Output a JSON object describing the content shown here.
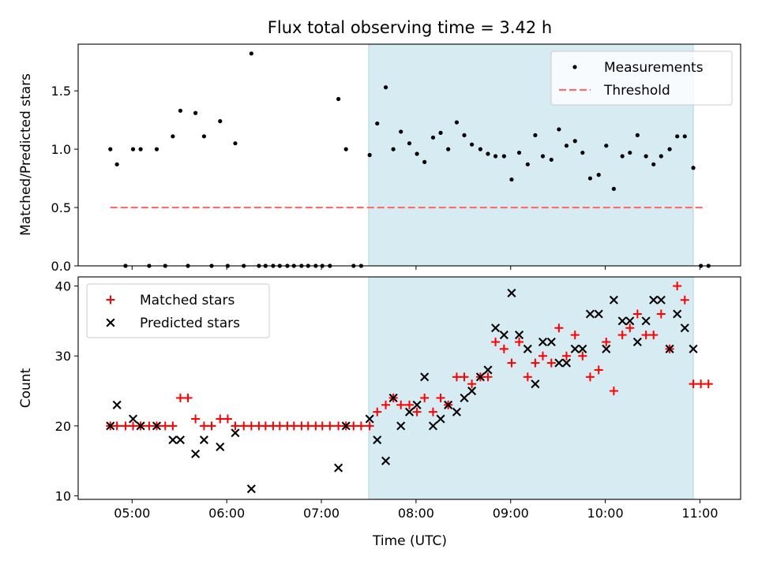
{
  "chart_data": {
    "title": "Flux total observing time = 3.42 h",
    "xlabel": "Time (UTC)",
    "xticks": [
      "05:00",
      "06:00",
      "07:00",
      "08:00",
      "09:00",
      "10:00",
      "11:00"
    ],
    "xlim_hours": [
      4.43,
      11.43
    ],
    "shaded_span_hours": [
      7.5,
      10.93
    ],
    "shade_color": "#add8e6",
    "panels": [
      {
        "type": "scatter",
        "ylabel": "Matched/Predicted stars",
        "ylim": [
          0,
          1.9
        ],
        "yticks": [
          0.0,
          0.5,
          1.0,
          1.5
        ],
        "legend_position": "top-right",
        "series": [
          {
            "name": "Measurements",
            "marker": "dot",
            "color": "#000000",
            "points": [
              [
                4.77,
                1.0
              ],
              [
                4.84,
                0.87
              ],
              [
                4.93,
                0.0
              ],
              [
                5.01,
                1.0
              ],
              [
                5.09,
                1.0
              ],
              [
                5.18,
                0.0
              ],
              [
                5.26,
                1.0
              ],
              [
                5.35,
                0.0
              ],
              [
                5.43,
                1.11
              ],
              [
                5.51,
                1.33
              ],
              [
                5.59,
                0.0
              ],
              [
                5.67,
                1.31
              ],
              [
                5.76,
                1.11
              ],
              [
                5.84,
                0.0
              ],
              [
                5.93,
                1.24
              ],
              [
                6.01,
                0.0
              ],
              [
                6.09,
                1.05
              ],
              [
                6.18,
                0.0
              ],
              [
                6.26,
                1.82
              ],
              [
                6.34,
                0.0
              ],
              [
                6.41,
                0.0
              ],
              [
                6.49,
                0.0
              ],
              [
                6.56,
                0.0
              ],
              [
                6.64,
                0.0
              ],
              [
                6.71,
                0.0
              ],
              [
                6.79,
                0.0
              ],
              [
                6.86,
                0.0
              ],
              [
                6.94,
                0.0
              ],
              [
                7.01,
                0.0
              ],
              [
                7.09,
                0.0
              ],
              [
                7.18,
                1.43
              ],
              [
                7.26,
                1.0
              ],
              [
                7.34,
                0.0
              ],
              [
                7.42,
                0.0
              ],
              [
                7.51,
                0.95
              ],
              [
                7.59,
                1.22
              ],
              [
                7.68,
                1.53
              ],
              [
                7.76,
                1.0
              ],
              [
                7.84,
                1.15
              ],
              [
                7.93,
                1.05
              ],
              [
                8.01,
                0.96
              ],
              [
                8.09,
                0.89
              ],
              [
                8.18,
                1.1
              ],
              [
                8.26,
                1.14
              ],
              [
                8.34,
                1.0
              ],
              [
                8.43,
                1.23
              ],
              [
                8.51,
                1.12
              ],
              [
                8.59,
                1.04
              ],
              [
                8.68,
                1.0
              ],
              [
                8.76,
                0.96
              ],
              [
                8.84,
                0.94
              ],
              [
                8.93,
                0.94
              ],
              [
                9.01,
                0.74
              ],
              [
                9.09,
                0.97
              ],
              [
                9.18,
                0.87
              ],
              [
                9.26,
                1.12
              ],
              [
                9.34,
                0.94
              ],
              [
                9.43,
                0.91
              ],
              [
                9.51,
                1.17
              ],
              [
                9.59,
                1.03
              ],
              [
                9.68,
                1.07
              ],
              [
                9.76,
                0.97
              ],
              [
                9.84,
                0.75
              ],
              [
                9.93,
                0.78
              ],
              [
                10.01,
                1.03
              ],
              [
                10.09,
                0.66
              ],
              [
                10.18,
                0.94
              ],
              [
                10.26,
                0.97
              ],
              [
                10.34,
                1.12
              ],
              [
                10.43,
                0.94
              ],
              [
                10.51,
                0.87
              ],
              [
                10.59,
                0.94
              ],
              [
                10.68,
                1.0
              ],
              [
                10.76,
                1.11
              ],
              [
                10.84,
                1.11
              ],
              [
                10.93,
                0.84
              ],
              [
                11.01,
                0.0
              ],
              [
                11.09,
                0.0
              ]
            ]
          },
          {
            "name": "Threshold",
            "style": "dashed-line",
            "color": "#ff6b6b",
            "points": [
              [
                4.77,
                0.5
              ],
              [
                11.05,
                0.5
              ]
            ]
          }
        ]
      },
      {
        "type": "scatter",
        "ylabel": "Count",
        "ylim": [
          9.5,
          41.3
        ],
        "yticks": [
          10,
          20,
          30,
          40
        ],
        "legend_position": "top-left",
        "series": [
          {
            "name": "Matched stars",
            "marker": "plus",
            "color": "#ff0000",
            "points": [
              [
                4.77,
                20
              ],
              [
                4.84,
                20
              ],
              [
                4.93,
                20
              ],
              [
                5.01,
                20
              ],
              [
                5.09,
                20
              ],
              [
                5.18,
                20
              ],
              [
                5.26,
                20
              ],
              [
                5.35,
                20
              ],
              [
                5.43,
                20
              ],
              [
                5.51,
                24
              ],
              [
                5.59,
                24
              ],
              [
                5.67,
                21
              ],
              [
                5.76,
                20
              ],
              [
                5.84,
                20
              ],
              [
                5.93,
                21
              ],
              [
                6.01,
                21
              ],
              [
                6.09,
                20
              ],
              [
                6.18,
                20
              ],
              [
                6.26,
                20
              ],
              [
                6.34,
                20
              ],
              [
                6.41,
                20
              ],
              [
                6.49,
                20
              ],
              [
                6.56,
                20
              ],
              [
                6.64,
                20
              ],
              [
                6.71,
                20
              ],
              [
                6.79,
                20
              ],
              [
                6.86,
                20
              ],
              [
                6.94,
                20
              ],
              [
                7.01,
                20
              ],
              [
                7.09,
                20
              ],
              [
                7.18,
                20
              ],
              [
                7.26,
                20
              ],
              [
                7.34,
                20
              ],
              [
                7.42,
                20
              ],
              [
                7.51,
                20
              ],
              [
                7.59,
                22
              ],
              [
                7.68,
                23
              ],
              [
                7.76,
                24
              ],
              [
                7.84,
                23
              ],
              [
                7.93,
                23
              ],
              [
                8.01,
                22
              ],
              [
                8.09,
                24
              ],
              [
                8.18,
                22
              ],
              [
                8.26,
                24
              ],
              [
                8.34,
                23
              ],
              [
                8.43,
                27
              ],
              [
                8.51,
                27
              ],
              [
                8.59,
                26
              ],
              [
                8.68,
                27
              ],
              [
                8.76,
                27
              ],
              [
                8.84,
                32
              ],
              [
                8.93,
                31
              ],
              [
                9.01,
                29
              ],
              [
                9.09,
                32
              ],
              [
                9.18,
                27
              ],
              [
                9.26,
                29
              ],
              [
                9.34,
                30
              ],
              [
                9.43,
                29
              ],
              [
                9.51,
                34
              ],
              [
                9.59,
                30
              ],
              [
                9.68,
                33
              ],
              [
                9.76,
                30
              ],
              [
                9.84,
                27
              ],
              [
                9.93,
                28
              ],
              [
                10.01,
                32
              ],
              [
                10.09,
                25
              ],
              [
                10.18,
                33
              ],
              [
                10.26,
                34
              ],
              [
                10.34,
                36
              ],
              [
                10.43,
                33
              ],
              [
                10.51,
                33
              ],
              [
                10.59,
                36
              ],
              [
                10.68,
                31
              ],
              [
                10.76,
                40
              ],
              [
                10.84,
                38
              ],
              [
                10.93,
                26
              ],
              [
                11.01,
                26
              ],
              [
                11.09,
                26
              ]
            ]
          },
          {
            "name": "Predicted stars",
            "marker": "x",
            "color": "#000000",
            "points": [
              [
                4.77,
                20
              ],
              [
                4.84,
                23
              ],
              [
                5.01,
                21
              ],
              [
                5.09,
                20
              ],
              [
                5.26,
                20
              ],
              [
                5.43,
                18
              ],
              [
                5.51,
                18
              ],
              [
                5.67,
                16
              ],
              [
                5.76,
                18
              ],
              [
                5.93,
                17
              ],
              [
                6.09,
                19
              ],
              [
                6.26,
                11
              ],
              [
                7.18,
                14
              ],
              [
                7.26,
                20
              ],
              [
                7.51,
                21
              ],
              [
                7.59,
                18
              ],
              [
                7.68,
                15
              ],
              [
                7.76,
                24
              ],
              [
                7.84,
                20
              ],
              [
                7.93,
                22
              ],
              [
                8.01,
                23
              ],
              [
                8.09,
                27
              ],
              [
                8.18,
                20
              ],
              [
                8.26,
                21
              ],
              [
                8.34,
                23
              ],
              [
                8.43,
                22
              ],
              [
                8.51,
                24
              ],
              [
                8.59,
                25
              ],
              [
                8.68,
                27
              ],
              [
                8.76,
                28
              ],
              [
                8.84,
                34
              ],
              [
                8.93,
                33
              ],
              [
                9.01,
                39
              ],
              [
                9.09,
                33
              ],
              [
                9.18,
                31
              ],
              [
                9.26,
                26
              ],
              [
                9.34,
                32
              ],
              [
                9.43,
                32
              ],
              [
                9.51,
                29
              ],
              [
                9.59,
                29
              ],
              [
                9.68,
                31
              ],
              [
                9.76,
                31
              ],
              [
                9.84,
                36
              ],
              [
                9.93,
                36
              ],
              [
                10.01,
                31
              ],
              [
                10.09,
                38
              ],
              [
                10.18,
                35
              ],
              [
                10.26,
                35
              ],
              [
                10.34,
                32
              ],
              [
                10.43,
                35
              ],
              [
                10.51,
                38
              ],
              [
                10.59,
                38
              ],
              [
                10.68,
                31
              ],
              [
                10.76,
                36
              ],
              [
                10.84,
                34
              ],
              [
                10.93,
                31
              ]
            ]
          }
        ]
      }
    ]
  }
}
